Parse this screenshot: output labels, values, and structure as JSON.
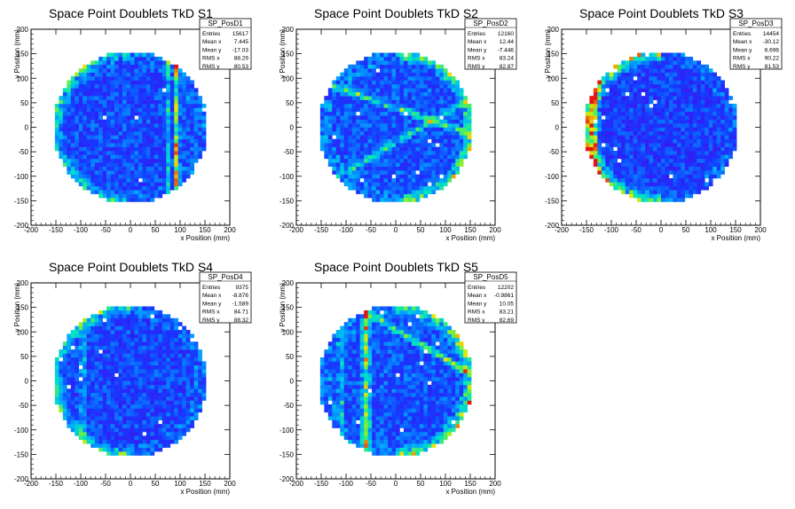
{
  "chart_data": [
    {
      "type": "heatmap",
      "title": "Space Point Doublets TkD S1",
      "xlabel": "x Position (mm)",
      "ylabel": "y Position (mm)",
      "xlim": [
        -200,
        200
      ],
      "ylim": [
        -200,
        200
      ],
      "xticks": [
        -200,
        -150,
        -100,
        -50,
        0,
        50,
        100,
        150,
        200
      ],
      "yticks": [
        -200,
        -150,
        -100,
        -50,
        0,
        50,
        100,
        150,
        200
      ],
      "stats": {
        "name": "SP_PosD1",
        "rows": [
          [
            "Entries",
            "15617"
          ],
          [
            "Mean x",
            "7.445"
          ],
          [
            "Mean y",
            "-17.03"
          ],
          [
            "RMS x",
            "88.29"
          ],
          [
            "RMS y",
            "80.53"
          ]
        ]
      },
      "features": {
        "radius": 155,
        "base": 0.18,
        "bands": [
          {
            "type": "v",
            "at": 93,
            "w": 8,
            "amp": 0.55
          },
          {
            "type": "v",
            "at": 75,
            "w": 6,
            "amp": 0.25
          }
        ],
        "rim": {
          "side": "left",
          "amp": 0.3
        }
      }
    },
    {
      "type": "heatmap",
      "title": "Space Point Doublets TkD S2",
      "xlabel": "x Position (mm)",
      "ylabel": "y Position (mm)",
      "xlim": [
        -200,
        200
      ],
      "ylim": [
        -200,
        200
      ],
      "xticks": [
        -200,
        -150,
        -100,
        -50,
        0,
        50,
        100,
        150,
        200
      ],
      "yticks": [
        -200,
        -150,
        -100,
        -50,
        0,
        50,
        100,
        150,
        200
      ],
      "stats": {
        "name": "SP_PosD2",
        "rows": [
          [
            "Entries",
            "12160"
          ],
          [
            "Mean x",
            "12.44"
          ],
          [
            "Mean y",
            "-7.446"
          ],
          [
            "RMS x",
            "83.24"
          ],
          [
            "RMS y",
            "82.87"
          ]
        ]
      },
      "features": {
        "radius": 155,
        "base": 0.2,
        "bands": [
          {
            "type": "d",
            "slope": -0.35,
            "at": 40,
            "w": 10,
            "amp": 0.35
          },
          {
            "type": "d",
            "slope": 0.6,
            "at": -30,
            "w": 10,
            "amp": 0.3
          }
        ],
        "rim": {
          "side": "right",
          "amp": 0.4
        }
      }
    },
    {
      "type": "heatmap",
      "title": "Space Point Doublets TkD S3",
      "xlabel": "x Position (mm)",
      "ylabel": "y Position (mm)",
      "xlim": [
        -200,
        200
      ],
      "ylim": [
        -200,
        200
      ],
      "xticks": [
        -200,
        -150,
        -100,
        -50,
        0,
        50,
        100,
        150,
        200
      ],
      "yticks": [
        -200,
        -150,
        -100,
        -50,
        0,
        50,
        100,
        150,
        200
      ],
      "stats": {
        "name": "SP_PosD3",
        "rows": [
          [
            "Entries",
            "14454"
          ],
          [
            "Mean x",
            "-30.12"
          ],
          [
            "Mean y",
            "6.696"
          ],
          [
            "RMS x",
            "90.22"
          ],
          [
            "RMS y",
            "81.53"
          ]
        ]
      },
      "features": {
        "radius": 155,
        "base": 0.15,
        "bands": [
          {
            "type": "v",
            "at": -135,
            "w": 14,
            "amp": 0.5
          }
        ],
        "rim": {
          "side": "left",
          "amp": 0.55
        }
      }
    },
    {
      "type": "heatmap",
      "title": "Space Point Doublets TkD S4",
      "xlabel": "x Position (mm)",
      "ylabel": "y Position (mm)",
      "xlim": [
        -200,
        200
      ],
      "ylim": [
        -200,
        200
      ],
      "xticks": [
        -200,
        -150,
        -100,
        -50,
        0,
        50,
        100,
        150,
        200
      ],
      "yticks": [
        -200,
        -150,
        -100,
        -50,
        0,
        50,
        100,
        150,
        200
      ],
      "stats": {
        "name": "SP_PosD4",
        "rows": [
          [
            "Entries",
            "9375"
          ],
          [
            "Mean x",
            "-8.876"
          ],
          [
            "Mean y",
            "-1.589"
          ],
          [
            "RMS x",
            "84.71"
          ],
          [
            "RMS y",
            "88.32"
          ]
        ]
      },
      "features": {
        "radius": 155,
        "base": 0.17,
        "bands": [
          {
            "type": "v",
            "at": -95,
            "w": 10,
            "amp": 0.25
          }
        ],
        "rim": {
          "side": "left",
          "amp": 0.35
        }
      }
    },
    {
      "type": "heatmap",
      "title": "Space Point Doublets TkD S5",
      "xlabel": "x Position (mm)",
      "ylabel": "y Position (mm)",
      "xlim": [
        -200,
        200
      ],
      "ylim": [
        -200,
        200
      ],
      "xticks": [
        -200,
        -150,
        -100,
        -50,
        0,
        50,
        100,
        150,
        200
      ],
      "yticks": [
        -200,
        -150,
        -100,
        -50,
        0,
        50,
        100,
        150,
        200
      ],
      "stats": {
        "name": "SP_PosD5",
        "rows": [
          [
            "Entries",
            "12202"
          ],
          [
            "Mean x",
            "-0.9861"
          ],
          [
            "Mean y",
            "10.05"
          ],
          [
            "RMS x",
            "83.21"
          ],
          [
            "RMS y",
            "82.69"
          ]
        ]
      },
      "features": {
        "radius": 155,
        "base": 0.2,
        "bands": [
          {
            "type": "v",
            "at": -60,
            "w": 14,
            "amp": 0.4
          },
          {
            "type": "v",
            "at": -110,
            "w": 8,
            "amp": 0.25
          },
          {
            "type": "d",
            "slope": -0.6,
            "at": 105,
            "w": 10,
            "amp": 0.4
          }
        ],
        "rim": {
          "side": "right",
          "amp": 0.45
        }
      }
    }
  ]
}
